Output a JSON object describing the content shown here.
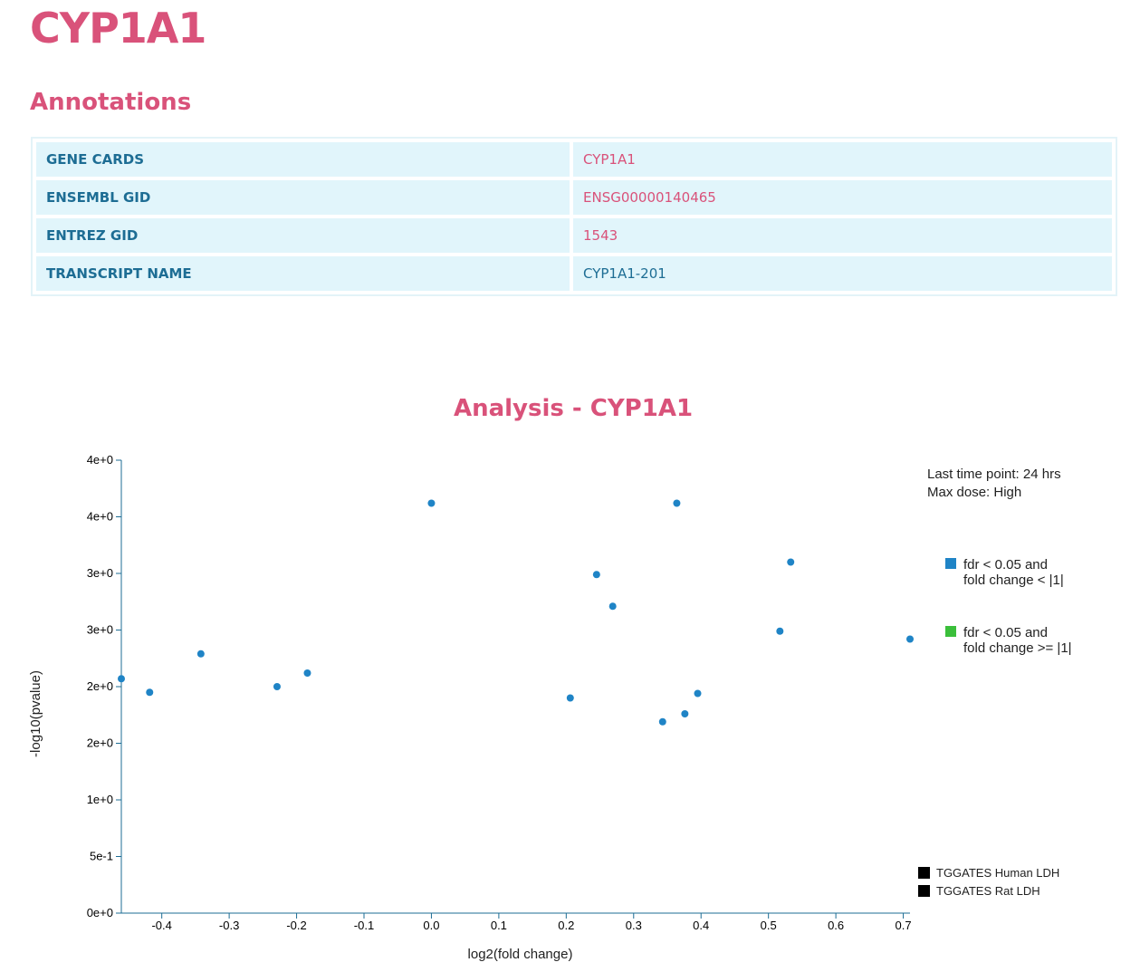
{
  "page": {
    "gene_title": "CYP1A1",
    "annotations_title": "Annotations",
    "analysis_title": "Analysis - CYP1A1"
  },
  "annotations": [
    {
      "key": "GENE CARDS",
      "value": "CYP1A1",
      "link": true
    },
    {
      "key": "ENSEMBL GID",
      "value": "ENSG00000140465",
      "link": true
    },
    {
      "key": "ENTREZ GID",
      "value": "1543",
      "link": true
    },
    {
      "key": "TRANSCRIPT NAME",
      "value": "CYP1A1-201",
      "link": false
    }
  ],
  "colors": {
    "accent": "#d9527a",
    "table_text": "#1d6d94",
    "table_cell_bg": "#e1f5fb",
    "axis": "#1d6d94",
    "point_blue": "#1f84c6",
    "legend_green": "#3bbf3b",
    "legend_black": "#000000"
  },
  "chart_data": {
    "type": "scatter",
    "title": "Analysis - CYP1A1",
    "xlabel": "log2(fold change)",
    "ylabel": "-log10(pvalue)",
    "xlim": [
      -0.46,
      0.71
    ],
    "ylim": [
      0,
      4
    ],
    "x_ticks": [
      -0.4,
      -0.3,
      -0.2,
      -0.1,
      0.0,
      0.1,
      0.2,
      0.3,
      0.4,
      0.5,
      0.6,
      0.7
    ],
    "x_tick_labels": [
      "-0.4",
      "-0.3",
      "-0.2",
      "-0.1",
      "0.0",
      "0.1",
      "0.2",
      "0.3",
      "0.4",
      "0.5",
      "0.6",
      "0.7"
    ],
    "y_ticks": [
      0,
      0.5,
      1,
      1.5,
      2,
      2.5,
      3,
      3.5,
      4
    ],
    "y_tick_labels": [
      "0e+0",
      "5e-1",
      "1e+0",
      "2e+0",
      "2e+0",
      "3e+0",
      "3e+0",
      "4e+0",
      "4e+0"
    ],
    "series": [
      {
        "color": "#1f84c6",
        "points": [
          {
            "x": -0.46,
            "y": 2.07
          },
          {
            "x": -0.418,
            "y": 1.95
          },
          {
            "x": -0.342,
            "y": 2.29
          },
          {
            "x": -0.229,
            "y": 2.0
          },
          {
            "x": -0.184,
            "y": 2.12
          },
          {
            "x": 0.0,
            "y": 3.62
          },
          {
            "x": 0.206,
            "y": 1.9
          },
          {
            "x": 0.245,
            "y": 2.99
          },
          {
            "x": 0.269,
            "y": 2.71
          },
          {
            "x": 0.343,
            "y": 1.69
          },
          {
            "x": 0.364,
            "y": 3.62
          },
          {
            "x": 0.376,
            "y": 1.76
          },
          {
            "x": 0.395,
            "y": 1.94
          },
          {
            "x": 0.517,
            "y": 2.49
          },
          {
            "x": 0.533,
            "y": 3.1
          },
          {
            "x": 0.71,
            "y": 2.42
          }
        ]
      }
    ],
    "info_lines": [
      "Last time point: 24 hrs",
      "Max dose: High"
    ],
    "legend": [
      {
        "color": "#1f84c6",
        "lines": [
          "fdr < 0.05 and",
          "fold change < |1|"
        ]
      },
      {
        "color": "#3bbf3b",
        "lines": [
          "fdr < 0.05 and",
          "fold change >= |1|"
        ]
      }
    ],
    "legend_sources": [
      {
        "color": "#000000",
        "label": "TGGATES Human LDH"
      },
      {
        "color": "#000000",
        "label": "TGGATES Rat LDH"
      }
    ],
    "grid": false
  }
}
